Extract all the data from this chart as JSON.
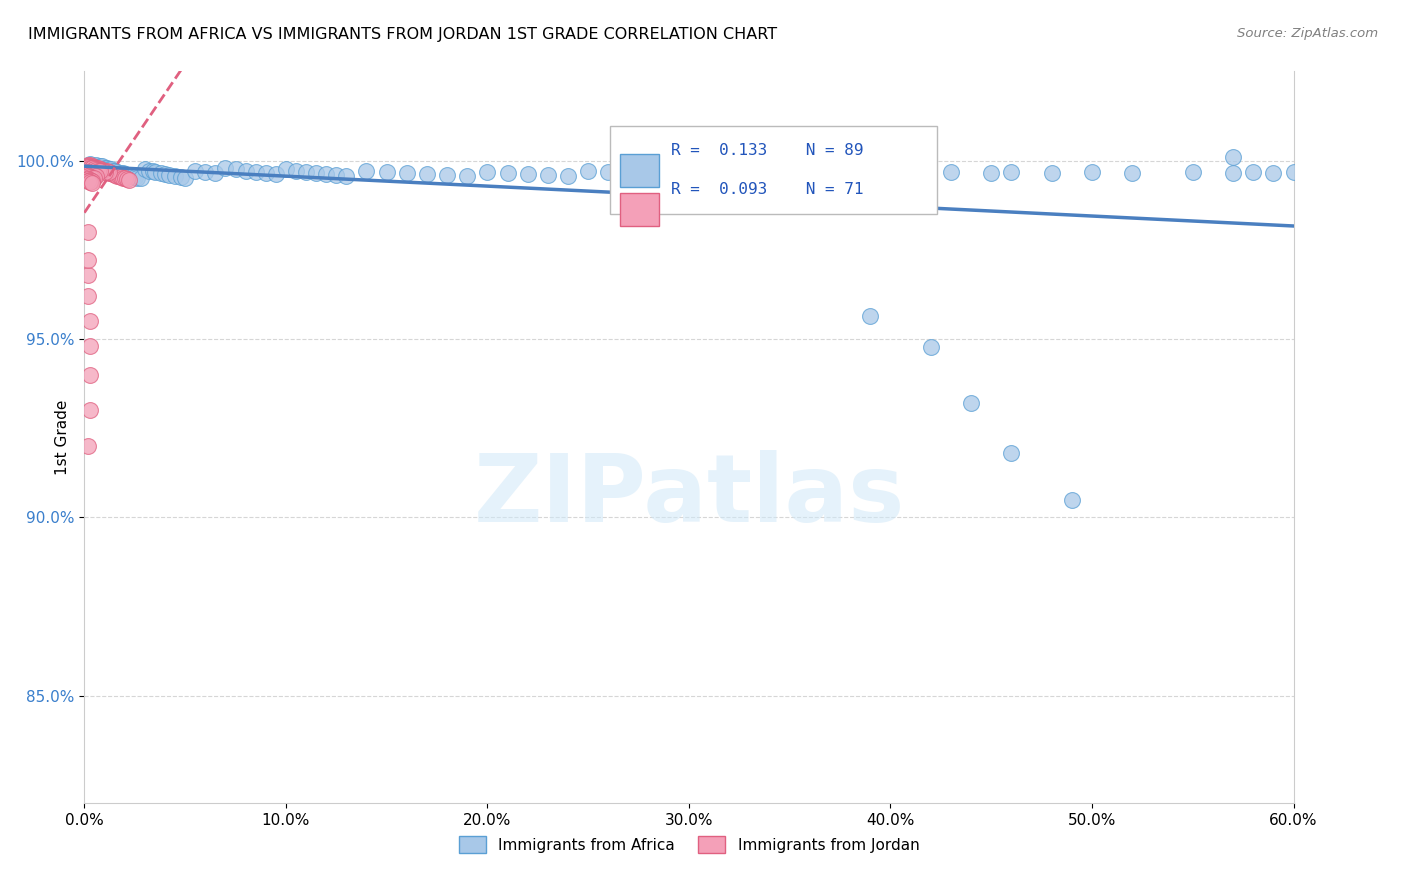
{
  "title": "IMMIGRANTS FROM AFRICA VS IMMIGRANTS FROM JORDAN 1ST GRADE CORRELATION CHART",
  "source": "Source: ZipAtlas.com",
  "xlim": [
    0.0,
    0.6
  ],
  "ylim": [
    0.82,
    1.025
  ],
  "xticks": [
    0.0,
    0.1,
    0.2,
    0.3,
    0.4,
    0.5,
    0.6
  ],
  "xticklabels": [
    "0.0%",
    "10.0%",
    "20.0%",
    "30.0%",
    "40.0%",
    "50.0%",
    "60.0%"
  ],
  "yticks": [
    0.85,
    0.9,
    0.95,
    1.0
  ],
  "yticklabels": [
    "85.0%",
    "90.0%",
    "95.0%",
    "100.0%"
  ],
  "ylabel_label": "1st Grade",
  "legend_labels": [
    "Immigrants from Africa",
    "Immigrants from Jordan"
  ],
  "R_africa": 0.133,
  "N_africa": 89,
  "R_jordan": 0.093,
  "N_jordan": 71,
  "color_africa_fill": "#a8c8e8",
  "color_africa_edge": "#5a9fd4",
  "color_jordan_fill": "#f4a0b8",
  "color_jordan_edge": "#e06080",
  "color_africa_line": "#4a7fc0",
  "color_jordan_line": "#e06080",
  "africa_x": [
    0.003,
    0.005,
    0.006,
    0.007,
    0.008,
    0.009,
    0.01,
    0.011,
    0.012,
    0.013,
    0.014,
    0.015,
    0.016,
    0.018,
    0.019,
    0.02,
    0.021,
    0.022,
    0.024,
    0.025,
    0.026,
    0.028,
    0.03,
    0.032,
    0.034,
    0.035,
    0.038,
    0.04,
    0.042,
    0.045,
    0.048,
    0.05,
    0.055,
    0.06,
    0.065,
    0.07,
    0.075,
    0.08,
    0.085,
    0.09,
    0.095,
    0.1,
    0.105,
    0.11,
    0.115,
    0.12,
    0.125,
    0.13,
    0.14,
    0.15,
    0.16,
    0.17,
    0.18,
    0.19,
    0.2,
    0.21,
    0.22,
    0.23,
    0.24,
    0.25,
    0.26,
    0.27,
    0.28,
    0.29,
    0.3,
    0.31,
    0.32,
    0.33,
    0.35,
    0.37,
    0.39,
    0.41,
    0.43,
    0.45,
    0.46,
    0.48,
    0.5,
    0.52,
    0.55,
    0.57,
    0.58,
    0.59,
    0.6,
    0.39,
    0.42,
    0.44,
    0.46,
    0.49,
    0.57
  ],
  "africa_y": [
    0.999,
    0.9985,
    0.9988,
    0.9982,
    0.9986,
    0.9984,
    0.998,
    0.9978,
    0.9976,
    0.9975,
    0.9972,
    0.997,
    0.9968,
    0.9966,
    0.9964,
    0.9962,
    0.996,
    0.9958,
    0.9956,
    0.9954,
    0.9952,
    0.995,
    0.9975,
    0.9972,
    0.997,
    0.9968,
    0.9965,
    0.9963,
    0.996,
    0.9958,
    0.9955,
    0.9952,
    0.9972,
    0.9968,
    0.9965,
    0.998,
    0.9975,
    0.9972,
    0.9968,
    0.9965,
    0.9962,
    0.9975,
    0.997,
    0.9968,
    0.9965,
    0.9962,
    0.996,
    0.9958,
    0.997,
    0.9968,
    0.9965,
    0.9962,
    0.996,
    0.9958,
    0.9968,
    0.9965,
    0.9962,
    0.996,
    0.9958,
    0.9972,
    0.9968,
    0.9965,
    0.9962,
    0.996,
    0.9968,
    0.9965,
    0.9968,
    0.9965,
    0.9968,
    0.9965,
    0.9968,
    0.9965,
    0.9968,
    0.9965,
    0.9968,
    0.9965,
    0.9968,
    0.9965,
    0.9968,
    0.9965,
    0.9968,
    0.9965,
    0.9968,
    0.9565,
    0.9478,
    0.932,
    0.918,
    0.905,
    1.001
  ],
  "jordan_x": [
    0.002,
    0.003,
    0.004,
    0.005,
    0.006,
    0.007,
    0.008,
    0.009,
    0.01,
    0.011,
    0.012,
    0.013,
    0.014,
    0.015,
    0.016,
    0.017,
    0.018,
    0.019,
    0.02,
    0.021,
    0.022,
    0.003,
    0.004,
    0.005,
    0.006,
    0.007,
    0.008,
    0.009,
    0.01,
    0.011,
    0.012,
    0.002,
    0.003,
    0.004,
    0.005,
    0.006,
    0.007,
    0.008,
    0.009,
    0.01,
    0.002,
    0.003,
    0.004,
    0.005,
    0.006,
    0.007,
    0.008,
    0.002,
    0.003,
    0.004,
    0.005,
    0.006,
    0.002,
    0.003,
    0.004,
    0.005,
    0.002,
    0.003,
    0.004,
    0.002,
    0.003,
    0.004,
    0.002,
    0.003,
    0.002,
    0.003,
    0.002,
    0.003,
    0.002,
    0.003,
    0.002
  ],
  "jordan_y": [
    0.9988,
    0.9985,
    0.9982,
    0.998,
    0.9978,
    0.9976,
    0.9974,
    0.9972,
    0.997,
    0.9968,
    0.9966,
    0.9964,
    0.9962,
    0.996,
    0.9958,
    0.9956,
    0.9954,
    0.9952,
    0.995,
    0.9948,
    0.9946,
    0.9988,
    0.9985,
    0.9982,
    0.998,
    0.9978,
    0.9976,
    0.9974,
    0.9972,
    0.997,
    0.9968,
    0.9985,
    0.9982,
    0.998,
    0.9978,
    0.9976,
    0.9974,
    0.9972,
    0.997,
    0.9968,
    0.9982,
    0.998,
    0.9978,
    0.9976,
    0.9974,
    0.9972,
    0.997,
    0.9968,
    0.9965,
    0.9962,
    0.996,
    0.9958,
    0.9956,
    0.9954,
    0.9952,
    0.995,
    0.9948,
    0.9946,
    0.9944,
    0.9942,
    0.994,
    0.9938,
    0.968,
    0.955,
    0.962,
    0.948,
    0.972,
    0.94,
    0.98,
    0.93,
    0.92
  ]
}
